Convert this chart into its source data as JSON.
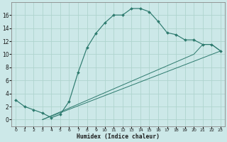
{
  "xlabel": "Humidex (Indice chaleur)",
  "bg_color": "#cce8e8",
  "line_color": "#2d7a6e",
  "grid_color": "#afd4ce",
  "line1_x": [
    0,
    1,
    2,
    3,
    4,
    5,
    6,
    7,
    8,
    9,
    10,
    11,
    12,
    13,
    14,
    15,
    16,
    17,
    18,
    19,
    20,
    21,
    22,
    23
  ],
  "line1_y": [
    3,
    2,
    1.5,
    1,
    0.3,
    0.8,
    2.8,
    7.2,
    11,
    13.2,
    14.8,
    16,
    16,
    17,
    17,
    16.5,
    15,
    13.3,
    13,
    12.2,
    12.2,
    11.5,
    11.5,
    10.5
  ],
  "line2_x": [
    3,
    23
  ],
  "line2_y": [
    0,
    10.5
  ],
  "line3_x": [
    3,
    20,
    21,
    22,
    23
  ],
  "line3_y": [
    0,
    10,
    11.5,
    11.5,
    10.5
  ],
  "xlim": [
    -0.5,
    23.5
  ],
  "ylim": [
    -1,
    18
  ],
  "yticks": [
    0,
    2,
    4,
    6,
    8,
    10,
    12,
    14,
    16
  ],
  "xticks": [
    0,
    1,
    2,
    3,
    4,
    5,
    6,
    7,
    8,
    9,
    10,
    11,
    12,
    13,
    14,
    15,
    16,
    17,
    18,
    19,
    20,
    21,
    22,
    23
  ],
  "figwidth": 3.2,
  "figheight": 2.0,
  "dpi": 100
}
